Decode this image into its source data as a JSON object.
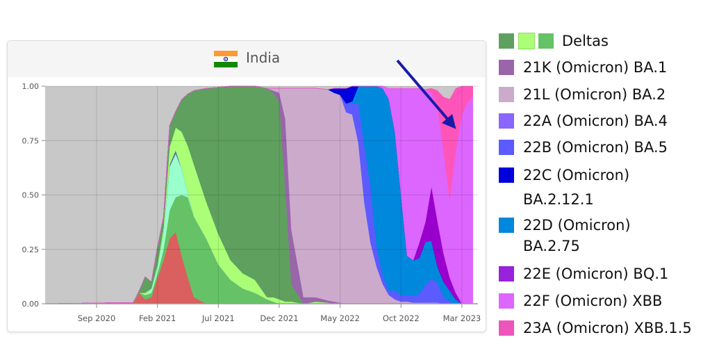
{
  "chart_data": {
    "type": "area",
    "stacked": true,
    "title": "India",
    "x_unit": "months since Sep 2020",
    "xlim": [
      -4.2,
      31.3
    ],
    "ylim": [
      0,
      1
    ],
    "grid": true,
    "background_color": "#c8c8c8",
    "y_ticks": [
      {
        "v": 0,
        "label": "0.00"
      },
      {
        "v": 0.25,
        "label": "0.25"
      },
      {
        "v": 0.5,
        "label": "0.50"
      },
      {
        "v": 0.75,
        "label": "0.75"
      },
      {
        "v": 1,
        "label": "1.00"
      }
    ],
    "x_ticks": [
      {
        "v": 0,
        "label": "Sep 2020"
      },
      {
        "v": 5,
        "label": "Feb 2021"
      },
      {
        "v": 10,
        "label": "Jul 2021"
      },
      {
        "v": 15,
        "label": "Dec 2021"
      },
      {
        "v": 20,
        "label": "May 2022"
      },
      {
        "v": 25,
        "label": "Oct 2022"
      },
      {
        "v": 30,
        "label": "Mar 2023"
      }
    ],
    "x": [
      -4.2,
      2,
      3,
      3.5,
      4,
      4.5,
      5,
      5.5,
      6,
      6.5,
      7,
      7.5,
      8,
      9,
      10,
      11,
      12,
      13,
      14,
      14.5,
      15,
      15.5,
      16,
      17,
      18,
      19,
      19.5,
      20,
      20.5,
      21,
      21.5,
      22,
      22.5,
      23,
      23.5,
      24,
      24.5,
      25,
      25.5,
      26,
      26.5,
      27,
      27.5,
      28,
      28.5,
      29,
      29.5,
      30,
      30.5,
      30.9
    ],
    "series": [
      {
        "key": "red",
        "color": "#d9605f",
        "values": [
          0,
          0,
          0,
          0.05,
          0.02,
          0.03,
          0.12,
          0.2,
          0.3,
          0.33,
          0.22,
          0.12,
          0.03,
          0,
          0,
          0,
          0,
          0,
          0,
          0,
          0,
          0,
          0,
          0,
          0,
          0,
          0,
          0,
          0,
          0,
          0,
          0,
          0,
          0,
          0,
          0,
          0,
          0,
          0,
          0,
          0,
          0,
          0,
          0,
          0,
          0,
          0,
          0,
          0,
          0
        ]
      },
      {
        "key": "delta-mid",
        "color": "#66c266",
        "values": [
          0,
          0,
          0,
          0,
          0.02,
          0.02,
          0.02,
          0.05,
          0.13,
          0.16,
          0.28,
          0.37,
          0.37,
          0.3,
          0.18,
          0.11,
          0.07,
          0.05,
          0.02,
          0.01,
          0,
          0,
          0,
          0,
          0,
          0,
          0,
          0,
          0,
          0,
          0,
          0,
          0,
          0,
          0,
          0,
          0,
          0,
          0,
          0,
          0,
          0,
          0,
          0,
          0,
          0,
          0,
          0,
          0,
          0
        ]
      },
      {
        "key": "mint",
        "color": "#99ffcc",
        "values": [
          0,
          0,
          0,
          0,
          0,
          0.02,
          0.03,
          0.08,
          0.2,
          0.2,
          0.12,
          0.02,
          0,
          0,
          0,
          0,
          0,
          0,
          0,
          0,
          0,
          0,
          0,
          0,
          0,
          0,
          0,
          0,
          0,
          0,
          0,
          0,
          0,
          0,
          0,
          0,
          0,
          0,
          0,
          0,
          0,
          0,
          0,
          0,
          0,
          0,
          0,
          0,
          0,
          0
        ]
      },
      {
        "key": "navy",
        "color": "#5566aa",
        "values": [
          0,
          0,
          0,
          0,
          0,
          0,
          0,
          0,
          0.01,
          0.015,
          0,
          0,
          0,
          0,
          0,
          0,
          0,
          0,
          0,
          0,
          0,
          0,
          0,
          0,
          0,
          0,
          0,
          0,
          0,
          0,
          0,
          0,
          0,
          0,
          0,
          0,
          0,
          0,
          0,
          0,
          0,
          0,
          0,
          0,
          0,
          0,
          0,
          0,
          0,
          0
        ]
      },
      {
        "key": "delta-light",
        "color": "#aaff77",
        "values": [
          0,
          0,
          0,
          0,
          0.01,
          0,
          0.01,
          0.02,
          0.08,
          0.105,
          0.17,
          0.215,
          0.24,
          0.17,
          0.14,
          0.09,
          0.07,
          0.06,
          0.01,
          0.02,
          0.02,
          0.01,
          0.01,
          0,
          0.01,
          0.005,
          0,
          0,
          0,
          0,
          0,
          0,
          0,
          0,
          0,
          0,
          0,
          0,
          0,
          0,
          0,
          0,
          0,
          0,
          0,
          0,
          0,
          0,
          0,
          0
        ]
      },
      {
        "key": "delta-dark",
        "color": "#5fa05f",
        "values": [
          0,
          0.005,
          0.005,
          0.01,
          0.075,
          0.03,
          0.08,
          0.05,
          0.1,
          0.075,
          0.15,
          0.24,
          0.34,
          0.52,
          0.675,
          0.8,
          0.86,
          0.89,
          0.96,
          0.94,
          0.91,
          0.52,
          0.08,
          0,
          0,
          0,
          0,
          0,
          0,
          0,
          0,
          0,
          0,
          0,
          0,
          0,
          0,
          0,
          0,
          0,
          0,
          0,
          0,
          0,
          0,
          0,
          0,
          0,
          0,
          0
        ]
      },
      {
        "key": "21K",
        "color": "#9966aa",
        "values": [
          0,
          0,
          0,
          0,
          0,
          0,
          0,
          0,
          0,
          0,
          0,
          0,
          0,
          0,
          0,
          0,
          0,
          0,
          0,
          0.01,
          0.04,
          0.32,
          0.25,
          0.03,
          0.02,
          0.01,
          0.01,
          0.005,
          0,
          0,
          0,
          0,
          0,
          0,
          0,
          0,
          0,
          0,
          0,
          0,
          0,
          0,
          0,
          0,
          0,
          0,
          0,
          0,
          0,
          0
        ]
      },
      {
        "key": "21L",
        "color": "#ccaacc",
        "values": [
          0,
          0,
          0,
          0,
          0,
          0,
          0,
          0,
          0,
          0,
          0,
          0,
          0,
          0,
          0,
          0,
          0,
          0,
          0,
          0.01,
          0.02,
          0.14,
          0.65,
          0.96,
          0.96,
          0.97,
          0.96,
          0.955,
          0.88,
          0.87,
          0.74,
          0.46,
          0.28,
          0.17,
          0.09,
          0.04,
          0.02,
          0.01,
          0.01,
          0.005,
          0.005,
          0.005,
          0.005,
          0.005,
          0,
          0,
          0,
          0,
          0,
          0
        ]
      },
      {
        "key": "22B",
        "color": "#5b5bff",
        "values": [
          0,
          0,
          0,
          0,
          0,
          0,
          0,
          0,
          0,
          0,
          0,
          0,
          0,
          0,
          0,
          0,
          0,
          0,
          0,
          0,
          0,
          0,
          0,
          0,
          0,
          0,
          0,
          0,
          0.04,
          0.05,
          0.18,
          0.265,
          0.26,
          0.09,
          0.04,
          0.02,
          0.04,
          0.03,
          0.03,
          0.03,
          0.04,
          0.08,
          0.11,
          0.09,
          0.03,
          0.01,
          0,
          0,
          0,
          0
        ]
      },
      {
        "key": "22D",
        "color": "#0088dd",
        "values": [
          0,
          0,
          0,
          0,
          0,
          0,
          0,
          0,
          0,
          0,
          0,
          0,
          0,
          0,
          0,
          0,
          0,
          0,
          0,
          0,
          0,
          0,
          0,
          0,
          0,
          0,
          0,
          0,
          0,
          0.01,
          0.08,
          0.275,
          0.46,
          0.74,
          0.86,
          0.88,
          0.73,
          0.46,
          0.18,
          0.165,
          0.165,
          0.2,
          0.175,
          0.075,
          0.07,
          0.05,
          0.02,
          0,
          0,
          0
        ]
      },
      {
        "key": "22C",
        "color": "#0000dd",
        "values": [
          0,
          0,
          0,
          0,
          0,
          0,
          0,
          0,
          0,
          0,
          0,
          0,
          0,
          0,
          0,
          0,
          0,
          0,
          0,
          0,
          0,
          0,
          0,
          0,
          0,
          0,
          0.02,
          0.03,
          0.07,
          0.07,
          0,
          0,
          0,
          0,
          0,
          0,
          0,
          0,
          0,
          0,
          0,
          0,
          0,
          0,
          0,
          0,
          0,
          0,
          0,
          0
        ]
      },
      {
        "key": "22E",
        "color": "#9900cc",
        "values": [
          0,
          0,
          0,
          0,
          0,
          0,
          0,
          0,
          0,
          0,
          0,
          0,
          0,
          0,
          0,
          0,
          0,
          0,
          0,
          0,
          0,
          0,
          0,
          0,
          0,
          0,
          0,
          0,
          0,
          0,
          0,
          0,
          0,
          0,
          0,
          0,
          0,
          0,
          0,
          0,
          0.07,
          0.09,
          0.25,
          0.21,
          0.13,
          0.06,
          0.03,
          0,
          0,
          0
        ]
      },
      {
        "key": "22F",
        "color": "#dd66ff",
        "values": [
          0,
          0,
          0,
          0,
          0,
          0,
          0,
          0,
          0,
          0,
          0,
          0,
          0,
          0,
          0,
          0,
          0,
          0,
          0,
          0,
          0,
          0,
          0,
          0,
          0,
          0,
          0,
          0,
          0,
          0,
          0,
          0,
          0,
          0,
          0.01,
          0.05,
          0.2,
          0.49,
          0.77,
          0.79,
          0.71,
          0.61,
          0.43,
          0.52,
          0.47,
          0.355,
          0.65,
          0.87,
          0.93,
          0.95
        ]
      },
      {
        "key": "23A",
        "color": "#ff55bb",
        "values": [
          0,
          0,
          0,
          0,
          0,
          0,
          0,
          0,
          0,
          0,
          0,
          0,
          0,
          0,
          0,
          0,
          0,
          0,
          0,
          0,
          0,
          0,
          0,
          0,
          0,
          0,
          0,
          0,
          0,
          0,
          0,
          0,
          0,
          0,
          0,
          0,
          0,
          0,
          0,
          0,
          0,
          0,
          0.02,
          0.08,
          0.25,
          0.465,
          0.29,
          0.13,
          0.07,
          0.05
        ]
      }
    ],
    "annotation": {
      "type": "arrow",
      "color": "#1a1aa8",
      "points_to": "23A (Omicron) XBB.1.5"
    },
    "legend": {
      "placement": "right",
      "entries": [
        {
          "label": "Deltas",
          "colors": [
            "#5fa05f",
            "#aaff77",
            "#66c266"
          ]
        },
        {
          "label": "21K (Omicron) BA.1",
          "colors": [
            "#9966aa"
          ]
        },
        {
          "label": "21L (Omicron) BA.2",
          "colors": [
            "#ccaacc"
          ]
        },
        {
          "label": "22A (Omicron) BA.4",
          "colors": [
            "#8866ff"
          ]
        },
        {
          "label": "22B (Omicron) BA.5",
          "colors": [
            "#5b5bff"
          ]
        },
        {
          "label": "22C (Omicron)",
          "label2": "BA.2.12.1",
          "colors": [
            "#0000dd"
          ]
        },
        {
          "label": "22D (Omicron)",
          "label2": "BA.2.75",
          "colors": [
            "#0088dd"
          ]
        },
        {
          "label": "22E (Omicron) BQ.1",
          "colors": [
            "#9922dd"
          ]
        },
        {
          "label": "22F (Omicron) XBB",
          "colors": [
            "#dd66ff"
          ]
        },
        {
          "label": "23A (Omicron) XBB.1.5",
          "colors": [
            "#ee55bb"
          ]
        }
      ]
    }
  }
}
